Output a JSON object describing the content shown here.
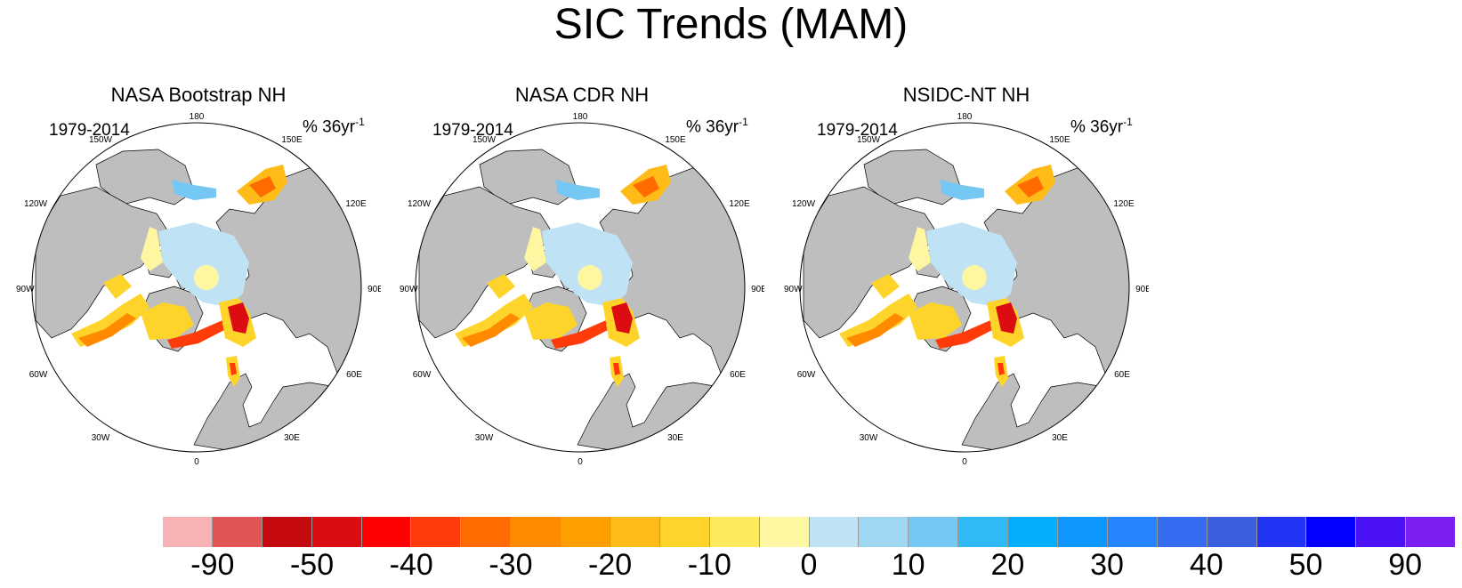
{
  "title": "SIC Trends (MAM)",
  "panels": [
    {
      "title": "NASA Bootstrap NH",
      "period": "1979-2014",
      "units_base": "% 36yr",
      "units_exp": "-1"
    },
    {
      "title": "NASA CDR NH",
      "period": "1979-2014",
      "units_base": "% 36yr",
      "units_exp": "-1"
    },
    {
      "title": "NSIDC-NT NH",
      "period": "1979-2014",
      "units_base": "% 36yr",
      "units_exp": "-1"
    }
  ],
  "longitude_labels": [
    "180",
    "150E",
    "120E",
    "90E",
    "60E",
    "30E",
    "0",
    "30W",
    "60W",
    "90W",
    "120W",
    "150W"
  ],
  "colorbar": {
    "colors": [
      "#f8b2b6",
      "#e15555",
      "#c50b10",
      "#dc0d12",
      "#ff0100",
      "#ff3c09",
      "#ff6b00",
      "#ff8a00",
      "#ffa000",
      "#ffbb18",
      "#ffd42a",
      "#ffe95c",
      "#fff6a1",
      "#bfe3f5",
      "#9fd6f2",
      "#74c8f3",
      "#2fbaf5",
      "#03aeff",
      "#0e97ff",
      "#2485ff",
      "#346df2",
      "#3c5ee0",
      "#2133f3",
      "#0400ff",
      "#4a12f5",
      "#7a1ff0"
    ],
    "labels": [
      "-90",
      "-50",
      "-40",
      "-30",
      "-20",
      "-10",
      "0",
      "10",
      "20",
      "30",
      "40",
      "50",
      "90"
    ]
  },
  "map": {
    "land_color": "#bebebe",
    "ocean_color": "#ffffff"
  }
}
